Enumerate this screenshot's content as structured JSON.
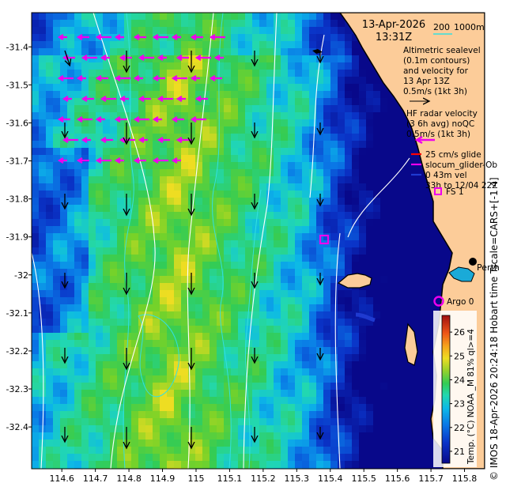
{
  "header": {
    "date": "13-Apr-2026",
    "time": "13:31Z",
    "scale_label": "200",
    "scale_unit": "1000m"
  },
  "legend": {
    "altimetry_lines": [
      "Altimetric sealevel",
      "(0.1m contours)",
      "and velocity for",
      "13 Apr 13Z",
      "0.5m/s (1kt 3h)"
    ],
    "hf_radar_lines": [
      "HF radar velocity",
      "(3 6h avg) noQC",
      "0.5m/s (1kt 3h)"
    ],
    "glider_lines": [
      "25 cm/s glide",
      "slocum_glider-Ob",
      "0 43m vel",
      "33h to 12/04 22Z"
    ],
    "station_label": "FS 1",
    "city_label": "Perth",
    "argo_label": "Argo 0"
  },
  "side_caption": "© IMOS 18-Apr-2026 20:24:18 Hobart time Tscale=CARS+[-1 4]",
  "colorbar": {
    "title": "Temp. (°C) NOAA _M 81% ql>=4",
    "ticks": [
      "21",
      "22",
      "23",
      "24",
      "25",
      "26"
    ],
    "min": 20.5,
    "max": 26.7
  },
  "axes": {
    "x_ticks": [
      "114.6",
      "114.7",
      "114.8",
      "114.9",
      "115",
      "115.1",
      "115.2",
      "115.3",
      "115.4",
      "115.5",
      "115.6",
      "115.7",
      "115.8"
    ],
    "y_ticks": [
      "-31.4",
      "-31.5",
      "-31.6",
      "-31.7",
      "-31.8",
      "-31.9",
      "-32",
      "-32.1",
      "-32.2",
      "-32.3",
      "-32.4"
    ],
    "lon_range": [
      114.51,
      115.86
    ],
    "lat_range": [
      -32.51,
      -31.31
    ]
  },
  "colors": {
    "land": "#fccc99",
    "hf_arrow": "#ee00ee",
    "contour": "#33e0e0",
    "glider": "#ff0000"
  }
}
